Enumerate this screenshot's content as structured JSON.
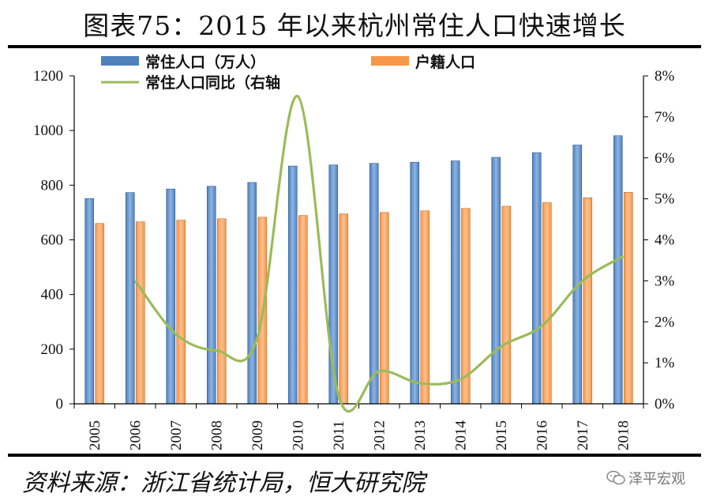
{
  "header": {
    "title": "图表75：2015 年以来杭州常住人口快速增长"
  },
  "footer": {
    "source": "资料来源：浙江省统计局，恒大研究院",
    "watermark": "泽平宏观"
  },
  "chart_data": {
    "type": "bar",
    "categories": [
      "2005",
      "2006",
      "2007",
      "2008",
      "2009",
      "2010",
      "2011",
      "2012",
      "2013",
      "2014",
      "2015",
      "2016",
      "2017",
      "2018"
    ],
    "series": [
      {
        "name": "常住人口（万人）",
        "type": "bar",
        "axis": "left",
        "color": "#4F81BD",
        "values": [
          751,
          773,
          786,
          796,
          810,
          870,
          874,
          880,
          884,
          889,
          902,
          919,
          947,
          981
        ]
      },
      {
        "name": "户籍人口",
        "type": "bar",
        "axis": "left",
        "color": "#F79646",
        "values": [
          660,
          666,
          672,
          677,
          683,
          689,
          695,
          700,
          706,
          715,
          723,
          736,
          754,
          774
        ]
      },
      {
        "name": "常住人口同比（右轴",
        "type": "line",
        "axis": "right",
        "color": "#9BBB59",
        "values": [
          null,
          3.0,
          1.7,
          1.3,
          1.6,
          7.5,
          0.2,
          0.8,
          0.5,
          0.6,
          1.4,
          1.9,
          3.0,
          3.6
        ]
      }
    ],
    "left_axis": {
      "ylim": [
        0,
        1200
      ],
      "ticks": [
        0,
        200,
        400,
        600,
        800,
        1000,
        1200
      ]
    },
    "right_axis": {
      "ylim": [
        0,
        8
      ],
      "ticks": [
        "0%",
        "1%",
        "2%",
        "3%",
        "4%",
        "5%",
        "6%",
        "7%",
        "8%"
      ]
    },
    "legend": "top",
    "grid": false
  }
}
